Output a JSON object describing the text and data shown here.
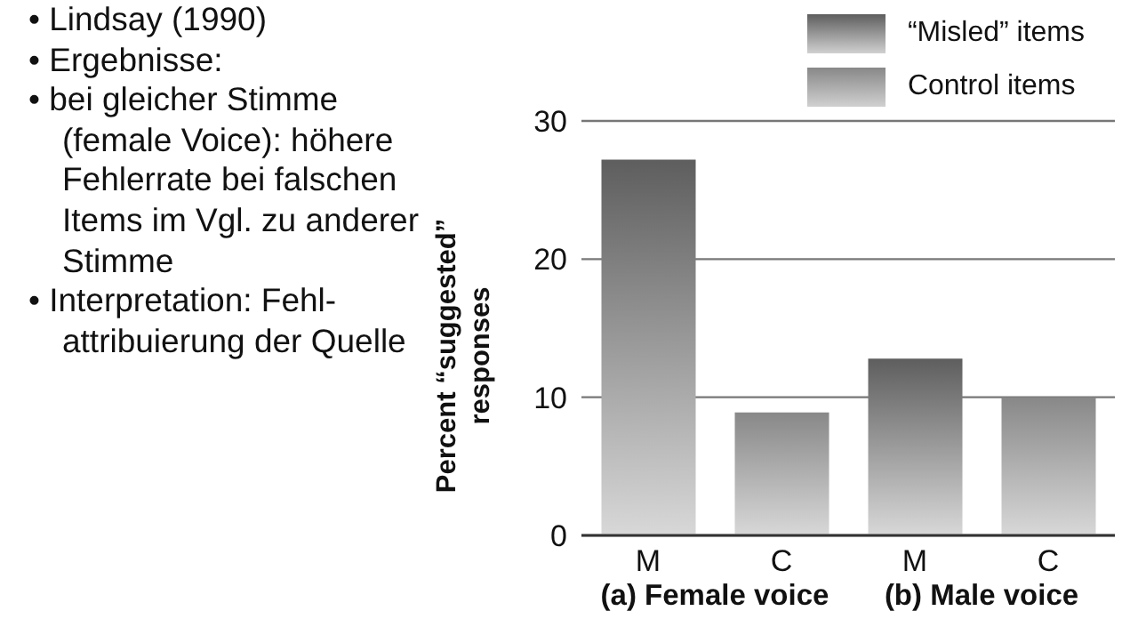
{
  "chart_data": {
    "type": "bar",
    "ylabel": "Percent “suggested” responses",
    "categories": [
      "M",
      "C",
      "M",
      "C"
    ],
    "stacked": true,
    "series": [
      {
        "name": "“Misled” items",
        "color": "#5e5e5e",
        "values": [
          27.2,
          null,
          12.8,
          null
        ]
      },
      {
        "name": "Control items",
        "color": "#888888",
        "values": [
          null,
          8.9,
          null,
          10
        ]
      }
    ],
    "ylim": [
      0,
      30
    ],
    "yticks": [
      0,
      10,
      20,
      30
    ],
    "grid": "y",
    "legend": "top right",
    "annotations": [
      "• Lindsay (1990)",
      "• Ergebnisse:",
      "• bei gleicher Stimme (female Voice): höhere Fehlerrate bei falschen Items im Vgl. zu anderer Stimme",
      "• Interpretation: Fehl-attribuierung der Quelle",
      "(a) Female voice",
      "(b) Male voice"
    ]
  }
}
